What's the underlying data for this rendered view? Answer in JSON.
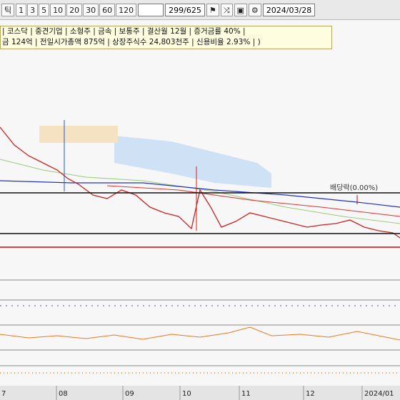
{
  "toolbar": {
    "label": "틱",
    "periods": [
      "1",
      "3",
      "5",
      "10",
      "20",
      "30",
      "60",
      "120"
    ],
    "counter": "299/625",
    "date": "2024/03/28"
  },
  "info_bar": {
    "line1": "| 코스닥 | 중견기업 | 소형주 | 금속 | 보통주 | 결산월 12월 | 증거금률 40% |",
    "line2": "금 124억 | 전일시가총액 875억 | 상장주식수 24,803천주 | 신용비율 2.93% | )"
  },
  "chart": {
    "annotation": "배당락(0.00%)",
    "x_labels": [
      "7",
      "08",
      "09",
      "10",
      "11",
      "12",
      "2024/01"
    ]
  }
}
